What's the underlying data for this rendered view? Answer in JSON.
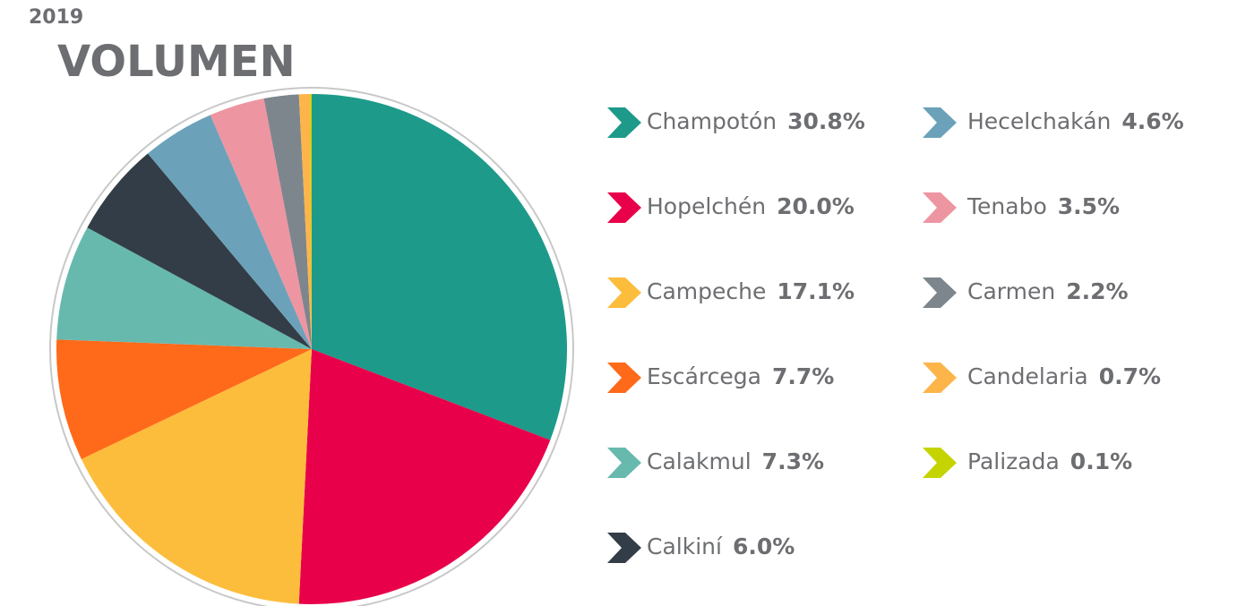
{
  "chart_data": {
    "type": "pie",
    "subtitle": "2019",
    "title": "VOLUMEN",
    "categories": [
      "Champotón",
      "Hopelchén",
      "Campeche",
      "Escárcega",
      "Calakmul",
      "Calkiní",
      "Hecelchakán",
      "Tenabo",
      "Carmen",
      "Candelaria",
      "Palizada"
    ],
    "values": [
      30.8,
      20.0,
      17.1,
      7.7,
      7.3,
      6.0,
      4.6,
      3.5,
      2.2,
      0.7,
      0.1
    ],
    "value_labels": [
      "30.8%",
      "20.0%",
      "17.1%",
      "7.7%",
      "7.3%",
      "6.0%",
      "4.6%",
      "3.5%",
      "2.2%",
      "0.7%",
      "0.1%"
    ],
    "colors": [
      "#1e9a8a",
      "#e8004a",
      "#fdbd3c",
      "#ff6a1a",
      "#67b9ae",
      "#333d47",
      "#6ba2ba",
      "#ee95a2",
      "#7d868d",
      "#fdb54a",
      "#c5d400"
    ]
  }
}
